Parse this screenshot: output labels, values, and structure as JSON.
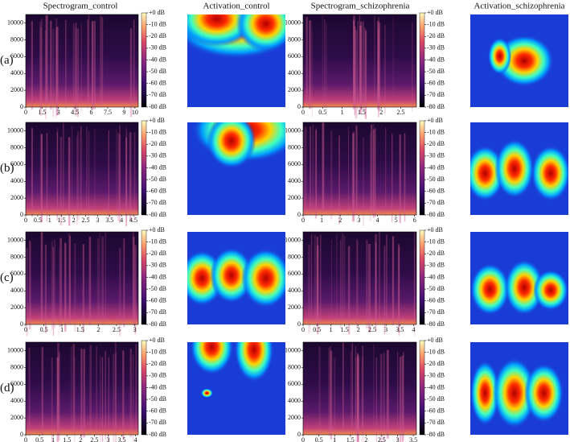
{
  "columns": [
    "Spectrogram_control",
    "Activation_control",
    "Spectrogram_schizophrenia",
    "Activation_schizophrenia"
  ],
  "rows": [
    {
      "label": "(a)",
      "spectrogram_control": {
        "xlim": [
          0,
          10.3
        ],
        "xticks": [
          0,
          1.5,
          3,
          4.5,
          6,
          7.5,
          9,
          10
        ]
      },
      "spectrogram_schizophrenia": {
        "xlim": [
          0,
          2.9
        ],
        "xticks": [
          0,
          0.5,
          1,
          1.5,
          2,
          2.5
        ]
      }
    },
    {
      "label": "(b)",
      "spectrogram_control": {
        "xlim": [
          0,
          4.7
        ],
        "xticks": [
          0,
          0.5,
          1,
          1.5,
          2,
          2.5,
          3,
          3.5,
          4,
          4.5
        ]
      },
      "spectrogram_schizophrenia": {
        "xlim": [
          0,
          6.1
        ],
        "xticks": [
          0,
          1,
          2,
          3,
          4,
          5,
          6
        ]
      }
    },
    {
      "label": "(c)",
      "spectrogram_control": {
        "xlim": [
          0,
          3.1
        ],
        "xticks": [
          0,
          0.5,
          1,
          1.5,
          2,
          2.5,
          3
        ]
      },
      "spectrogram_schizophrenia": {
        "xlim": [
          0,
          4.1
        ],
        "xticks": [
          0,
          0.5,
          1,
          1.5,
          2,
          2.5,
          3,
          3.5,
          4
        ]
      }
    },
    {
      "label": "(d)",
      "spectrogram_control": {
        "xlim": [
          0,
          4.1
        ],
        "xticks": [
          0,
          0.5,
          1,
          1.5,
          2,
          2.5,
          3,
          3.5,
          4
        ]
      },
      "spectrogram_schizophrenia": {
        "xlim": [
          0,
          3.6
        ],
        "xticks": [
          0,
          0.5,
          1,
          1.5,
          2,
          2.5,
          3,
          3.5
        ]
      }
    }
  ],
  "spectrogram_yaxis": {
    "ylim": [
      0,
      11025
    ],
    "yticks": [
      0,
      2000,
      4000,
      6000,
      8000,
      10000
    ]
  },
  "colorbar": {
    "lim": [
      -80,
      0
    ],
    "ticks": [
      {
        "value": 0,
        "label": "+0 dB"
      },
      {
        "value": -10,
        "label": "-10 dB"
      },
      {
        "value": -20,
        "label": "-20 dB"
      },
      {
        "value": -30,
        "label": "-30 dB"
      },
      {
        "value": -40,
        "label": "-40 dB"
      },
      {
        "value": -50,
        "label": "-50 dB"
      },
      {
        "value": -60,
        "label": "-60 dB"
      },
      {
        "value": -70,
        "label": "-70 dB"
      },
      {
        "value": -80,
        "label": "-80 dB"
      }
    ]
  }
}
